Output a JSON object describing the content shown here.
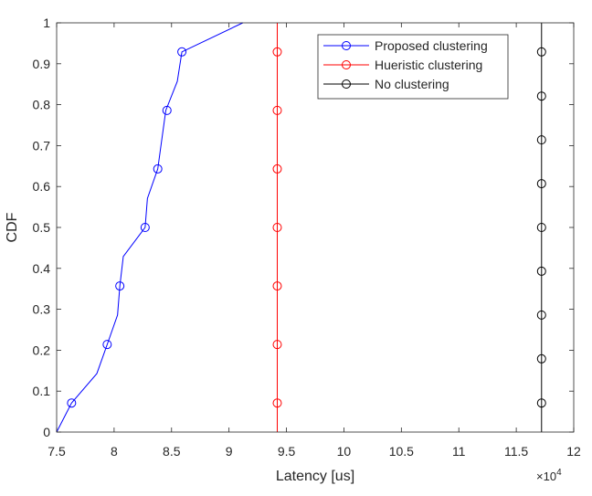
{
  "chart_data": {
    "type": "line",
    "title": "",
    "xlabel": "Latency [us]",
    "ylabel": "CDF",
    "x_multiplier_label": "×10",
    "x_multiplier_exp": "4",
    "xlim": [
      7.5,
      12
    ],
    "ylim": [
      0,
      1
    ],
    "xticks": [
      "7.5",
      "8",
      "8.5",
      "9",
      "9.5",
      "10",
      "10.5",
      "11",
      "11.5",
      "12"
    ],
    "yticks": [
      "0",
      "0.1",
      "0.2",
      "0.3",
      "0.4",
      "0.5",
      "0.6",
      "0.7",
      "0.8",
      "0.9",
      "1"
    ],
    "legend_position": "top-right",
    "grid": false,
    "series": [
      {
        "name": "Proposed clustering",
        "color": "#0000ff",
        "x": [
          7.5,
          7.63,
          7.85,
          7.94,
          8.03,
          8.05,
          8.08,
          8.27,
          8.29,
          8.38,
          8.45,
          8.55,
          8.59,
          9.12
        ],
        "y": [
          0,
          0.071,
          0.143,
          0.214,
          0.286,
          0.357,
          0.429,
          0.5,
          0.571,
          0.643,
          0.786,
          0.857,
          0.929,
          1.0
        ],
        "markers_x": [
          7.63,
          7.94,
          8.05,
          8.27,
          8.38,
          8.46,
          8.59
        ],
        "markers_y": [
          0.071,
          0.214,
          0.357,
          0.5,
          0.643,
          0.786,
          0.929
        ]
      },
      {
        "name": "Hueristic clustering",
        "color": "#ff0000",
        "x": [
          9.42,
          9.42
        ],
        "y": [
          0,
          1
        ],
        "markers_x": [
          9.42,
          9.42,
          9.42,
          9.42,
          9.42,
          9.42,
          9.42
        ],
        "markers_y": [
          0.071,
          0.214,
          0.357,
          0.5,
          0.643,
          0.786,
          0.929
        ]
      },
      {
        "name": "No clustering",
        "color": "#000000",
        "x": [
          11.72,
          11.72
        ],
        "y": [
          0,
          1
        ],
        "markers_x": [
          11.72,
          11.72,
          11.72,
          11.72,
          11.72,
          11.72,
          11.72,
          11.72,
          11.72
        ],
        "markers_y": [
          0.071,
          0.179,
          0.286,
          0.393,
          0.5,
          0.607,
          0.714,
          0.821,
          0.929
        ]
      }
    ]
  }
}
